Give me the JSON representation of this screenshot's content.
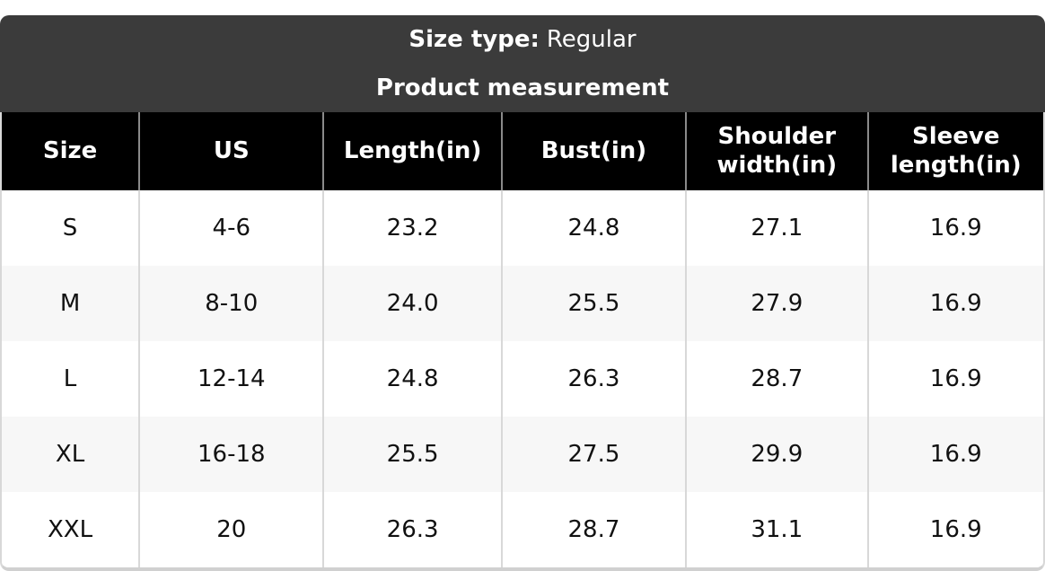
{
  "colors": {
    "band_bg": "#3b3b3b",
    "header_bg": "#000000",
    "row_alt_bg": "#f7f7f7",
    "border": "#d8d8d8",
    "band_text": "#ffffff",
    "cell_text": "#111111"
  },
  "chart_data": {
    "type": "table",
    "size_type_label": "Size type:",
    "size_type_value": "Regular",
    "title": "Product measurement",
    "columns": [
      "Size",
      "US",
      "Length(in)",
      "Bust(in)",
      "Shoulder width(in)",
      "Sleeve length(in)"
    ],
    "rows": [
      [
        "S",
        "4-6",
        "23.2",
        "24.8",
        "27.1",
        "16.9"
      ],
      [
        "M",
        "8-10",
        "24.0",
        "25.5",
        "27.9",
        "16.9"
      ],
      [
        "L",
        "12-14",
        "24.8",
        "26.3",
        "28.7",
        "16.9"
      ],
      [
        "XL",
        "16-18",
        "25.5",
        "27.5",
        "29.9",
        "16.9"
      ],
      [
        "XXL",
        "20",
        "26.3",
        "28.7",
        "31.1",
        "16.9"
      ]
    ],
    "layout_hints": {
      "striped_rows": true,
      "first_column_narrow": true,
      "rounded_corners": true
    }
  }
}
